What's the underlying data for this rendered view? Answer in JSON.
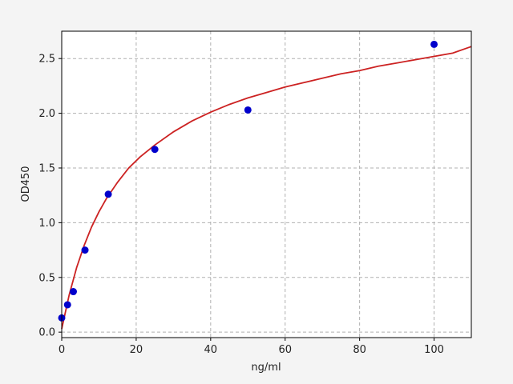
{
  "chart_data": {
    "type": "scatter",
    "xlabel": "ng/ml",
    "ylabel": "OD450",
    "xlim": [
      0,
      110
    ],
    "ylim": [
      -0.05,
      2.75
    ],
    "xticks": [
      0,
      20,
      40,
      60,
      80,
      100
    ],
    "yticks": [
      0.0,
      0.5,
      1.0,
      1.5,
      2.0,
      2.5
    ],
    "xtick_labels": [
      "0",
      "20",
      "40",
      "60",
      "80",
      "100"
    ],
    "ytick_labels": [
      "0.0",
      "0.5",
      "1.0",
      "1.5",
      "2.0",
      "2.5"
    ],
    "grid": true,
    "legend": "none",
    "points": {
      "x": [
        0,
        1.56,
        3.12,
        6.25,
        12.5,
        25,
        50,
        100
      ],
      "y": [
        0.13,
        0.25,
        0.37,
        0.75,
        1.26,
        1.67,
        2.03,
        2.63
      ]
    },
    "fit_curve": {
      "type": "4PL",
      "x": [
        0,
        2,
        4,
        6,
        8,
        10,
        12,
        15,
        18,
        21,
        25,
        30,
        35,
        40,
        45,
        50,
        55,
        60,
        65,
        70,
        75,
        80,
        85,
        90,
        95,
        100,
        105,
        110
      ],
      "y": [
        0.03,
        0.34,
        0.59,
        0.79,
        0.96,
        1.1,
        1.22,
        1.37,
        1.5,
        1.6,
        1.71,
        1.83,
        1.93,
        2.01,
        2.08,
        2.14,
        2.19,
        2.24,
        2.28,
        2.32,
        2.36,
        2.39,
        2.43,
        2.46,
        2.49,
        2.52,
        2.55,
        2.61
      ]
    },
    "colors": {
      "points": "#0000cc",
      "curve": "#cc2222",
      "grid": "#b0b0b0",
      "plot_bg": "#ffffff",
      "figure_bg": "#f4f4f4"
    }
  }
}
